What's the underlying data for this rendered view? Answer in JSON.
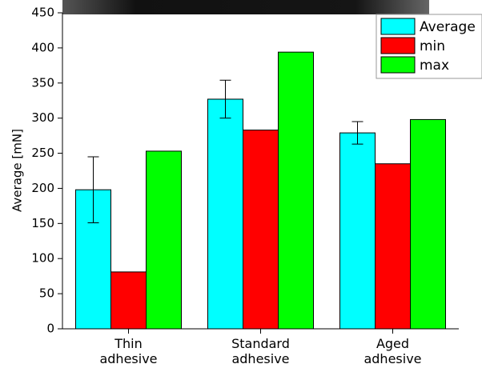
{
  "chart_data": {
    "type": "bar",
    "y_label": "Average [mN]",
    "categories": [
      "Thin\nadhesive",
      "Standard\nadhesive",
      "Aged\nadhesive"
    ],
    "series": [
      {
        "name": "Average",
        "color": "#00ffff",
        "values": [
          198,
          327,
          279
        ],
        "error": [
          47,
          27,
          16
        ]
      },
      {
        "name": "min",
        "color": "#ff0000",
        "values": [
          81,
          283,
          235
        ]
      },
      {
        "name": "max",
        "color": "#00ff00",
        "values": [
          253,
          394,
          298
        ]
      }
    ],
    "ylim": [
      0,
      450
    ],
    "yticks": [
      0,
      50,
      100,
      150,
      200,
      250,
      300,
      350,
      400,
      450
    ],
    "legend": "top-right"
  }
}
